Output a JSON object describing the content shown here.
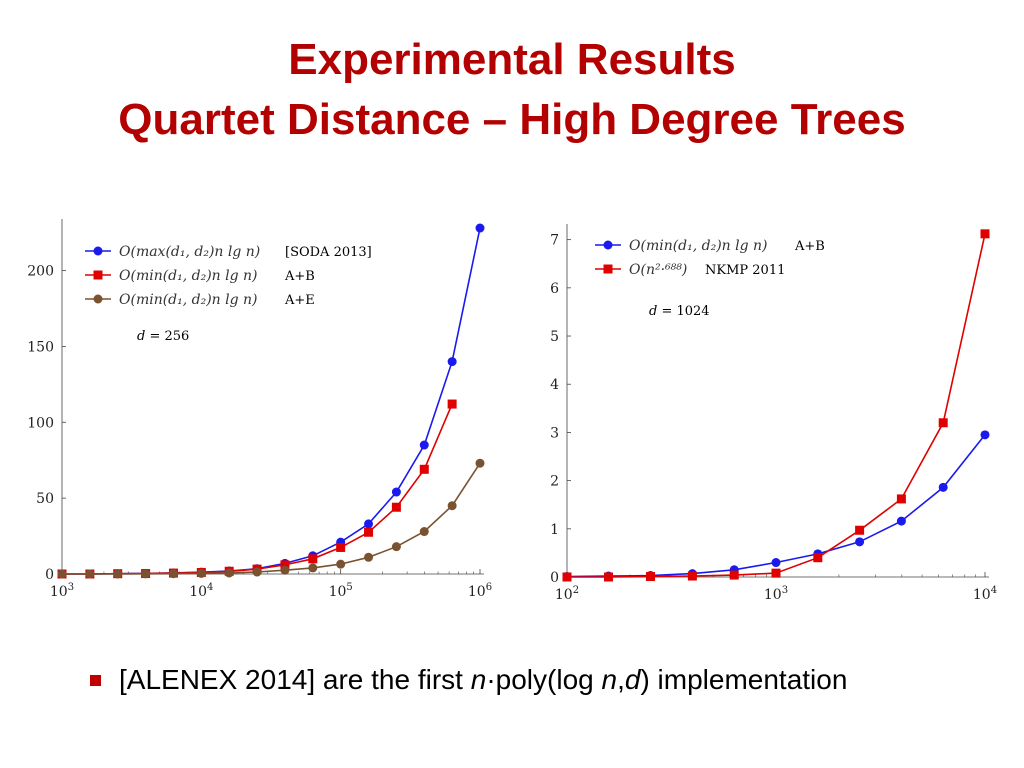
{
  "title": {
    "line1": "Experimental Results",
    "line2": "Quartet Distance – High Degree Trees"
  },
  "colors": {
    "title": "#b30000",
    "blue": "#1a1aee",
    "red": "#e00000",
    "brown": "#7a5230",
    "bullet": "#c00000"
  },
  "chart_data": [
    {
      "type": "line",
      "x_scale": "log",
      "xlim": [
        1000,
        1000000
      ],
      "ylim": [
        0,
        230
      ],
      "x_tick_labels": [
        {
          "value": 1000,
          "base": "10",
          "exp": "3"
        },
        {
          "value": 10000,
          "base": "10",
          "exp": "4"
        },
        {
          "value": 100000,
          "base": "10",
          "exp": "5"
        },
        {
          "value": 1000000,
          "base": "10",
          "exp": "6"
        }
      ],
      "y_ticks": [
        0,
        50,
        100,
        150,
        200
      ],
      "legend_position": "top-left",
      "annotation": {
        "prefix": "d",
        "text": " = 256"
      },
      "series": [
        {
          "name": "O(max(d₁, d₂) n lg n)",
          "legend_main": "O(max(d₁, d₂)n lg n)",
          "legend_note": "[SODA 2013]",
          "color": "#1a1aee",
          "marker": "circle",
          "x": [
            1000,
            1585,
            2512,
            3981,
            6310,
            10000,
            15849,
            25119,
            39811,
            63096,
            100000,
            158489,
            251189,
            398107,
            630957,
            1000000
          ],
          "y": [
            0,
            0,
            0.2,
            0.4,
            0.7,
            1.2,
            2.0,
            3.5,
            7,
            12,
            21,
            33,
            54,
            85,
            140,
            228
          ]
        },
        {
          "name": "O(min(d₁, d₂) n lg n) A+B",
          "legend_main": "O(min(d₁, d₂)n lg n)",
          "legend_note": "A+B",
          "color": "#e00000",
          "marker": "square",
          "x": [
            1000,
            1585,
            2512,
            3981,
            6310,
            10000,
            15849,
            25119,
            39811,
            63096,
            100000,
            158489,
            251189,
            398107,
            630957
          ],
          "y": [
            0,
            0,
            0.2,
            0.3,
            0.6,
            1.0,
            1.8,
            3.2,
            6,
            10,
            17.5,
            27.5,
            44,
            69,
            112
          ]
        },
        {
          "name": "O(min(d₁, d₂) n lg n) A+E",
          "legend_main": "O(min(d₁, d₂)n lg n)",
          "legend_note": "A+E",
          "color": "#7a5230",
          "marker": "circle",
          "x": [
            1000,
            1585,
            2512,
            3981,
            6310,
            10000,
            15849,
            25119,
            39811,
            63096,
            100000,
            158489,
            251189,
            398107,
            630957,
            1000000
          ],
          "y": [
            0,
            0,
            0,
            0.1,
            0.2,
            0.4,
            0.7,
            1.3,
            2.5,
            4,
            6.5,
            11,
            18,
            28,
            45,
            73
          ]
        }
      ]
    },
    {
      "type": "line",
      "x_scale": "log",
      "xlim": [
        100,
        10000
      ],
      "ylim": [
        0,
        7.2
      ],
      "x_tick_labels": [
        {
          "value": 100,
          "base": "10",
          "exp": "2"
        },
        {
          "value": 1000,
          "base": "10",
          "exp": "3"
        },
        {
          "value": 10000,
          "base": "10",
          "exp": "4"
        }
      ],
      "y_ticks": [
        0,
        1,
        2,
        3,
        4,
        5,
        6,
        7
      ],
      "legend_position": "top-left",
      "annotation": {
        "prefix": "d",
        "text": " = 1024"
      },
      "series": [
        {
          "name": "O(min(d₁, d₂) n lg n) A+B",
          "legend_main": "O(min(d₁, d₂)n lg n)",
          "legend_note": "A+B",
          "color": "#1a1aee",
          "marker": "circle",
          "x": [
            100,
            158,
            251,
            398,
            631,
            1000,
            1585,
            2512,
            3981,
            6310,
            10000
          ],
          "y": [
            0.01,
            0.02,
            0.03,
            0.07,
            0.15,
            0.3,
            0.48,
            0.73,
            1.16,
            1.86,
            2.95
          ]
        },
        {
          "name": "O(n^2.688) NKMP 2011",
          "legend_main": "O(n²·⁶⁸⁸)",
          "legend_note": "NKMP 2011",
          "color": "#e00000",
          "marker": "square",
          "x": [
            100,
            158,
            251,
            398,
            631,
            1000,
            1585,
            2512,
            3981,
            6310,
            10000
          ],
          "y": [
            0.0,
            0.0,
            0.01,
            0.02,
            0.04,
            0.08,
            0.4,
            0.97,
            1.62,
            3.2,
            7.12
          ]
        }
      ]
    }
  ],
  "bullet": {
    "pre": "[ALENEX 2014] are the first ",
    "n": "n",
    "mid": "·poly(log ",
    "n2": "n",
    "comma": ",",
    "d": "d",
    "post": ") implementation"
  }
}
